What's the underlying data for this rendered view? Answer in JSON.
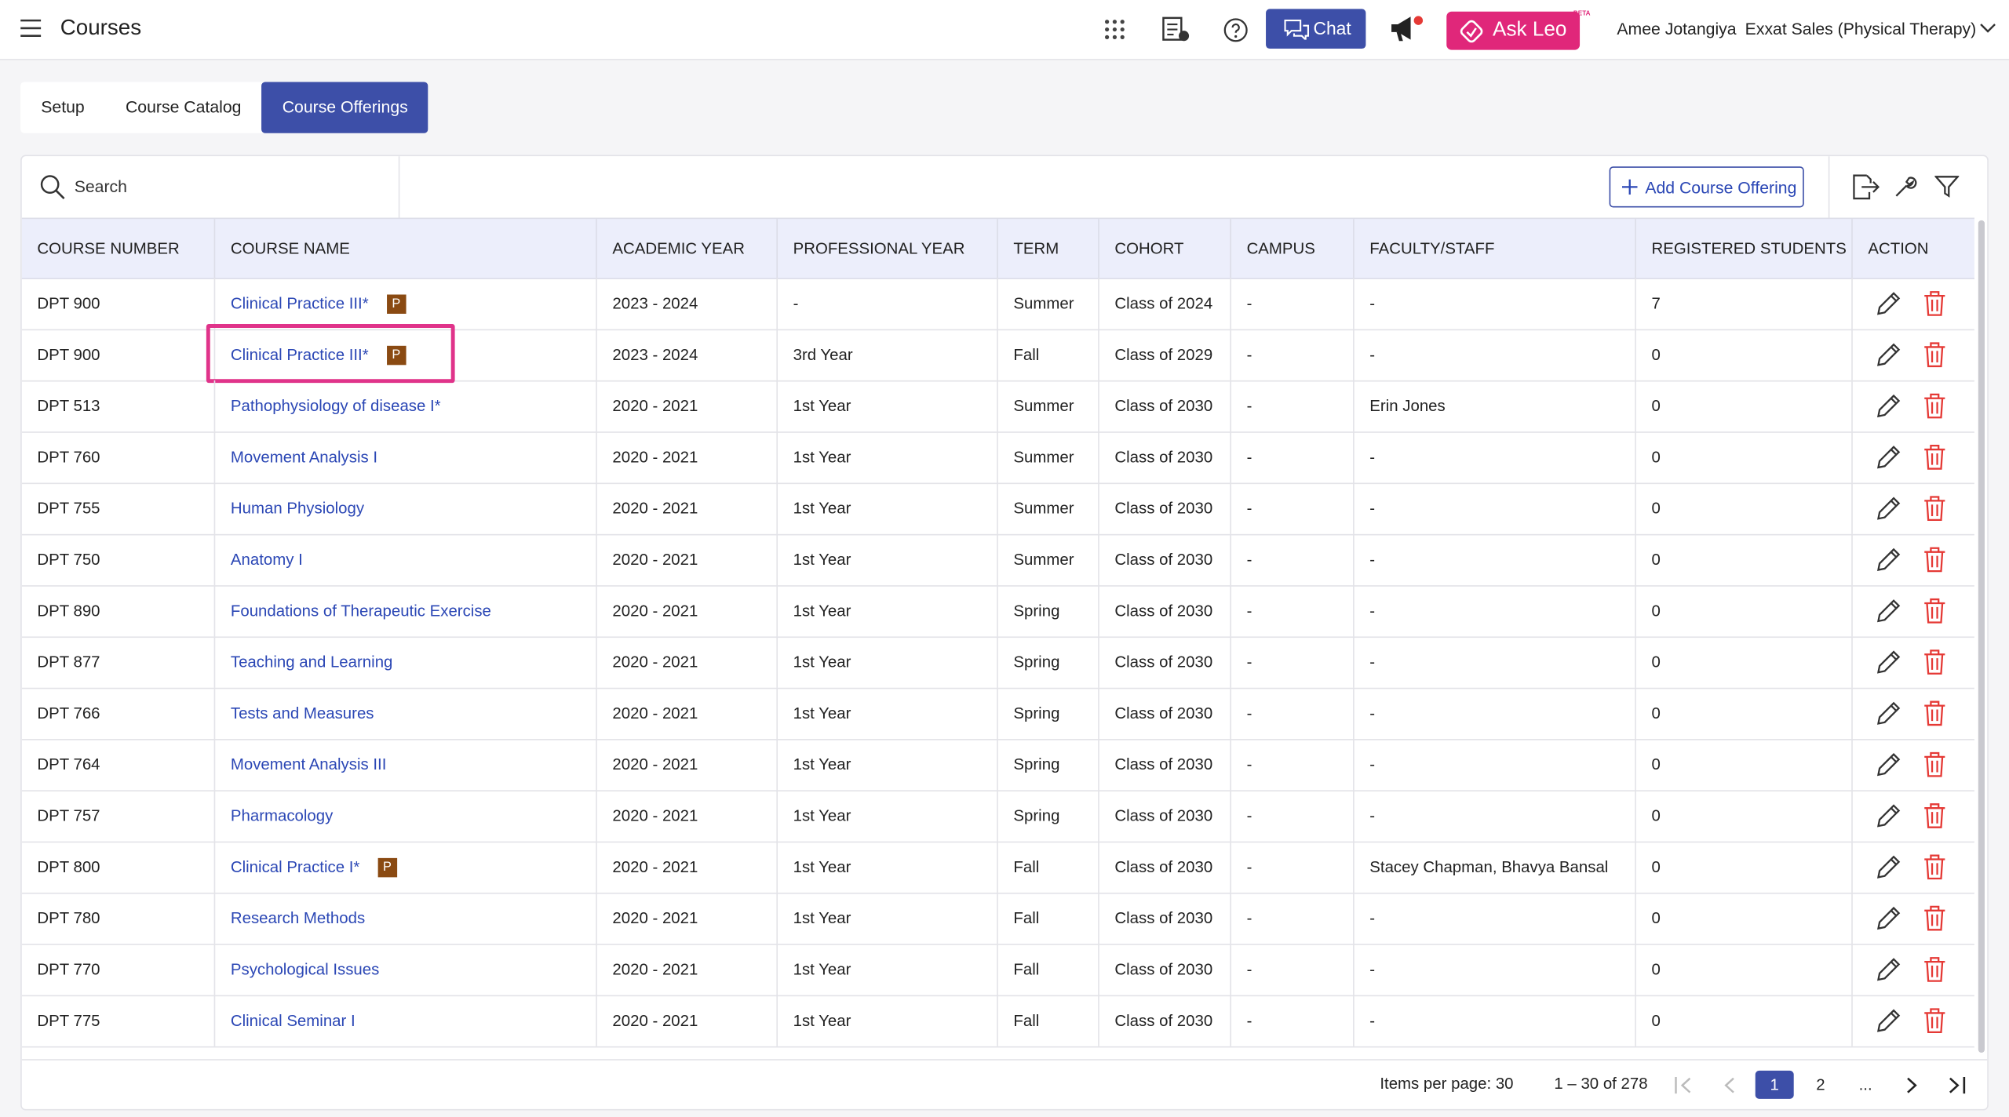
{
  "header": {
    "title": "Courses",
    "chat": "Chat",
    "ask_leo": "Ask Leo",
    "beta": "BETA",
    "user": "Amee Jotangiya",
    "org": "Exxat Sales (Physical Therapy)"
  },
  "tabs": [
    "Setup",
    "Course Catalog",
    "Course Offerings"
  ],
  "active_tab": 2,
  "toolbar": {
    "search": "Search",
    "add": "Add Course Offering"
  },
  "table": {
    "columns": [
      "COURSE NUMBER",
      "COURSE NAME",
      "ACADEMIC YEAR",
      "PROFESSIONAL YEAR",
      "TERM",
      "COHORT",
      "CAMPUS",
      "FACULTY/STAFF",
      "REGISTERED STUDENTS",
      "ACTION"
    ],
    "rows": [
      {
        "number": "DPT 900",
        "name": "Clinical Practice III*",
        "badge": "P",
        "academic_year": "2023 - 2024",
        "professional_year": "-",
        "term": "Summer",
        "cohort": "Class of 2024",
        "campus": "-",
        "faculty": "-",
        "registered": "7"
      },
      {
        "number": "DPT 900",
        "name": "Clinical Practice III*",
        "badge": "P",
        "academic_year": "2023 - 2024",
        "professional_year": "3rd Year",
        "term": "Fall",
        "cohort": "Class of 2029",
        "campus": "-",
        "faculty": "-",
        "registered": "0"
      },
      {
        "number": "DPT 513",
        "name": "Pathophysiology of disease I*",
        "academic_year": "2020 - 2021",
        "professional_year": "1st Year",
        "term": "Summer",
        "cohort": "Class of 2030",
        "campus": "-",
        "faculty": "Erin Jones",
        "registered": "0"
      },
      {
        "number": "DPT 760",
        "name": "Movement Analysis I",
        "academic_year": "2020 - 2021",
        "professional_year": "1st Year",
        "term": "Summer",
        "cohort": "Class of 2030",
        "campus": "-",
        "faculty": "-",
        "registered": "0"
      },
      {
        "number": "DPT 755",
        "name": "Human Physiology",
        "academic_year": "2020 - 2021",
        "professional_year": "1st Year",
        "term": "Summer",
        "cohort": "Class of 2030",
        "campus": "-",
        "faculty": "-",
        "registered": "0"
      },
      {
        "number": "DPT 750",
        "name": "Anatomy I",
        "academic_year": "2020 - 2021",
        "professional_year": "1st Year",
        "term": "Summer",
        "cohort": "Class of 2030",
        "campus": "-",
        "faculty": "-",
        "registered": "0"
      },
      {
        "number": "DPT 890",
        "name": "Foundations of Therapeutic Exercise",
        "academic_year": "2020 - 2021",
        "professional_year": "1st Year",
        "term": "Spring",
        "cohort": "Class of 2030",
        "campus": "-",
        "faculty": "-",
        "registered": "0"
      },
      {
        "number": "DPT 877",
        "name": "Teaching and Learning",
        "academic_year": "2020 - 2021",
        "professional_year": "1st Year",
        "term": "Spring",
        "cohort": "Class of 2030",
        "campus": "-",
        "faculty": "-",
        "registered": "0"
      },
      {
        "number": "DPT 766",
        "name": "Tests and Measures",
        "academic_year": "2020 - 2021",
        "professional_year": "1st Year",
        "term": "Spring",
        "cohort": "Class of 2030",
        "campus": "-",
        "faculty": "-",
        "registered": "0"
      },
      {
        "number": "DPT 764",
        "name": "Movement Analysis III",
        "academic_year": "2020 - 2021",
        "professional_year": "1st Year",
        "term": "Spring",
        "cohort": "Class of 2030",
        "campus": "-",
        "faculty": "-",
        "registered": "0"
      },
      {
        "number": "DPT 757",
        "name": "Pharmacology",
        "academic_year": "2020 - 2021",
        "professional_year": "1st Year",
        "term": "Spring",
        "cohort": "Class of 2030",
        "campus": "-",
        "faculty": "-",
        "registered": "0"
      },
      {
        "number": "DPT 800",
        "name": "Clinical Practice I*",
        "badge": "P",
        "academic_year": "2020 - 2021",
        "professional_year": "1st Year",
        "term": "Fall",
        "cohort": "Class of 2030",
        "campus": "-",
        "faculty": "Stacey Chapman, Bhavya Bansal",
        "registered": "0"
      },
      {
        "number": "DPT 780",
        "name": "Research Methods",
        "academic_year": "2020 - 2021",
        "professional_year": "1st Year",
        "term": "Fall",
        "cohort": "Class of 2030",
        "campus": "-",
        "faculty": "-",
        "registered": "0"
      },
      {
        "number": "DPT 770",
        "name": "Psychological Issues",
        "academic_year": "2020 - 2021",
        "professional_year": "1st Year",
        "term": "Fall",
        "cohort": "Class of 2030",
        "campus": "-",
        "faculty": "-",
        "registered": "0"
      },
      {
        "number": "DPT 775",
        "name": "Clinical Seminar I",
        "academic_year": "2020 - 2021",
        "professional_year": "1st Year",
        "term": "Fall",
        "cohort": "Class of 2030",
        "campus": "-",
        "faculty": "-",
        "registered": "0"
      }
    ]
  },
  "highlighted_row": 1,
  "pagination": {
    "items_per_page": "Items per page: 30",
    "range": "1 – 30 of 278",
    "pages": [
      "1",
      "2",
      "..."
    ],
    "current": 0
  }
}
